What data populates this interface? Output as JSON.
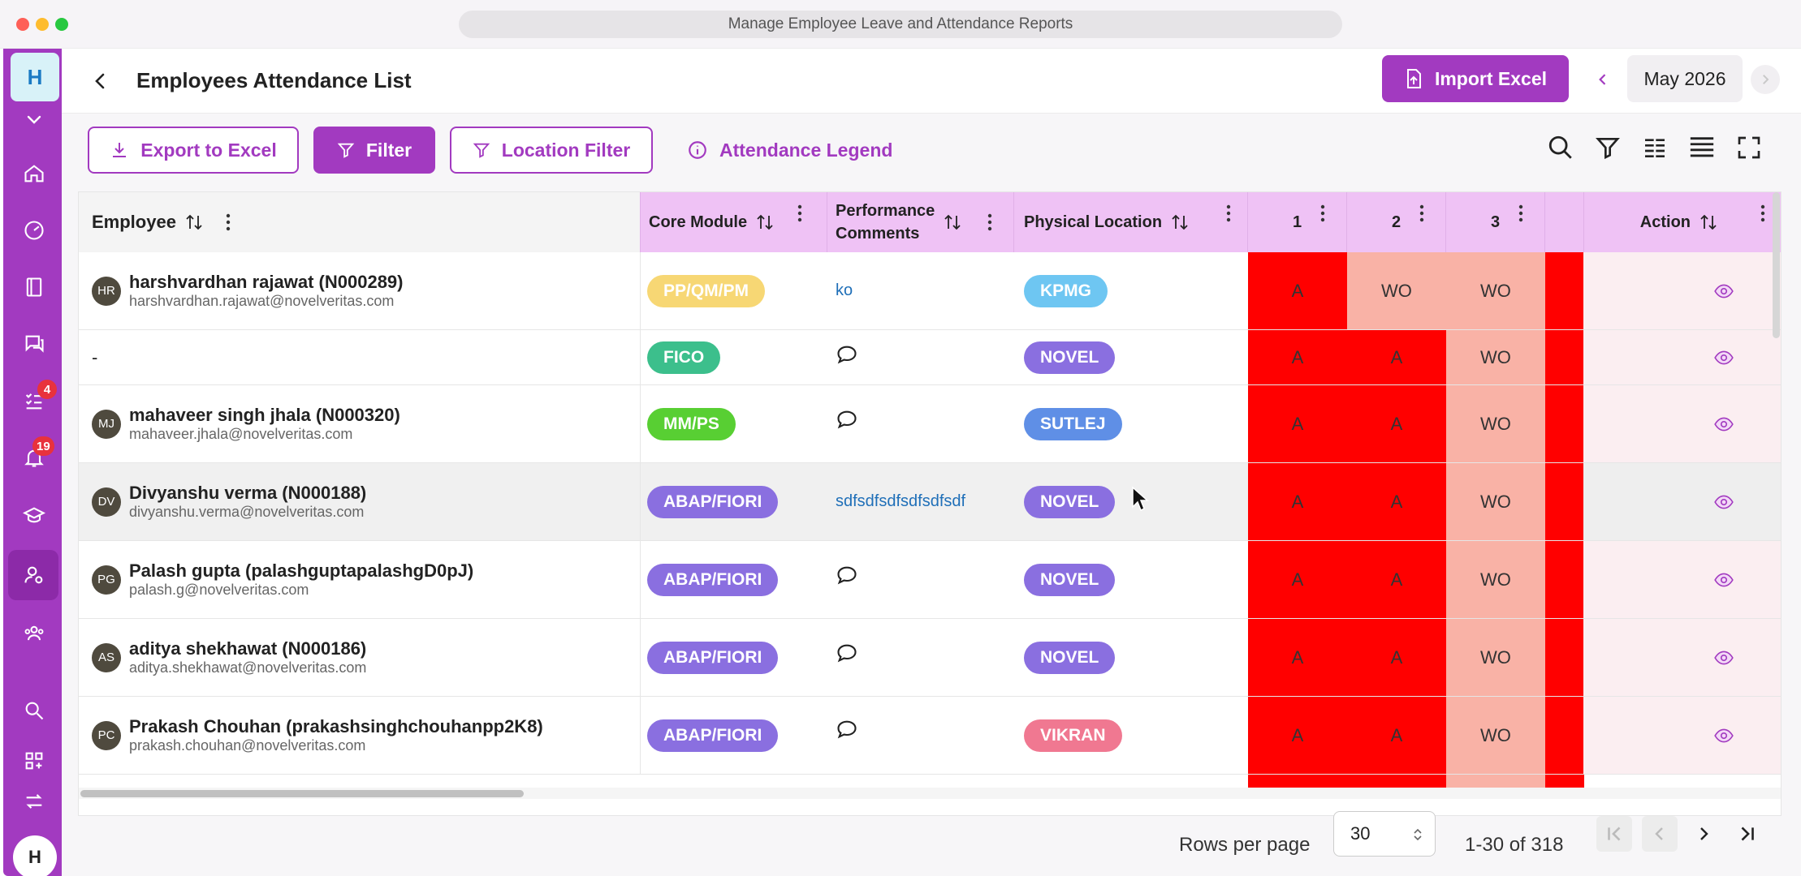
{
  "window": {
    "url_title": "Manage Employee Leave and Attendance Reports"
  },
  "rail": {
    "logo": "H",
    "avatar": "H",
    "items": [
      {
        "icon": "home-icon"
      },
      {
        "icon": "dashboard-icon"
      },
      {
        "icon": "book-icon"
      },
      {
        "icon": "chat-icon"
      },
      {
        "icon": "tasks-icon",
        "badge": "4"
      },
      {
        "icon": "bell-icon",
        "badge": "19"
      },
      {
        "icon": "graduation-icon"
      },
      {
        "icon": "user-settings-icon"
      },
      {
        "icon": "team-icon"
      },
      {
        "icon": "search-icon"
      },
      {
        "icon": "apps-icon"
      },
      {
        "icon": "swap-icon"
      }
    ]
  },
  "header": {
    "title": "Employees Attendance List",
    "import_label": "Import Excel",
    "month": "May 2026"
  },
  "toolbar": {
    "export_label": "Export to Excel",
    "filter_label": "Filter",
    "location_filter_label": "Location Filter",
    "legend_label": "Attendance Legend"
  },
  "table": {
    "columns": {
      "employee": "Employee",
      "core_module": "Core Module",
      "performance_1": "Performance",
      "performance_2": "Comments",
      "location": "Physical Location",
      "day1": "1",
      "day2": "2",
      "day3": "3",
      "action": "Action"
    },
    "rows": [
      {
        "initials": "HR",
        "name": "harshvardhan rajawat (N000289)",
        "email": "harshvardhan.rajawat@novelveritas.com",
        "module": "PP/QM/PM",
        "module_color": "#f7d774",
        "perf": "ko",
        "location": "KPMG",
        "location_color": "#6ec6f2",
        "d1": "A",
        "d2": "WO",
        "d3": "WO"
      },
      {
        "initials": "",
        "name": "-",
        "email": "",
        "module": "FICO",
        "module_color": "#3cbf8c",
        "perf": "",
        "location": "NOVEL",
        "location_color": "#8a6fe0",
        "d1": "A",
        "d2": "A",
        "d3": "WO"
      },
      {
        "initials": "MJ",
        "name": "mahaveer singh jhala (N000320)",
        "email": "mahaveer.jhala@novelveritas.com",
        "module": "MM/PS",
        "module_color": "#58cf33",
        "perf": "",
        "location": "SUTLEJ",
        "location_color": "#5f8fe6",
        "d1": "A",
        "d2": "A",
        "d3": "WO"
      },
      {
        "initials": "DV",
        "name": "Divyanshu verma (N000188)",
        "email": "divyanshu.verma@novelveritas.com",
        "module": "ABAP/FIORI",
        "module_color": "#8a6fe0",
        "perf": "sdfsdfsdfsdfsdfsdf",
        "location": "NOVEL",
        "location_color": "#8a6fe0",
        "d1": "A",
        "d2": "A",
        "d3": "WO"
      },
      {
        "initials": "PG",
        "name": "Palash gupta (palashguptapalashgD0pJ)",
        "email": "palash.g@novelveritas.com",
        "module": "ABAP/FIORI",
        "module_color": "#8a6fe0",
        "perf": "",
        "location": "NOVEL",
        "location_color": "#8a6fe0",
        "d1": "A",
        "d2": "A",
        "d3": "WO"
      },
      {
        "initials": "AS",
        "name": "aditya shekhawat (N000186)",
        "email": "aditya.shekhawat@novelveritas.com",
        "module": "ABAP/FIORI",
        "module_color": "#8a6fe0",
        "perf": "",
        "location": "NOVEL",
        "location_color": "#8a6fe0",
        "d1": "A",
        "d2": "A",
        "d3": "WO"
      },
      {
        "initials": "PC",
        "name": "Prakash Chouhan (prakashsinghchouhanpp2K8)",
        "email": "prakash.chouhan@novelveritas.com",
        "module": "ABAP/FIORI",
        "module_color": "#8a6fe0",
        "perf": "",
        "location": "VIKRAN",
        "location_color": "#f07891",
        "d1": "A",
        "d2": "A",
        "d3": "WO"
      }
    ]
  },
  "pagination": {
    "rows_per_page_label": "Rows per page",
    "rows_per_page": "30",
    "range": "1-30 of 318"
  },
  "colors": {
    "accent": "#a23ac0",
    "absent": "#ff0000",
    "week_off": "#f9b2a6"
  }
}
